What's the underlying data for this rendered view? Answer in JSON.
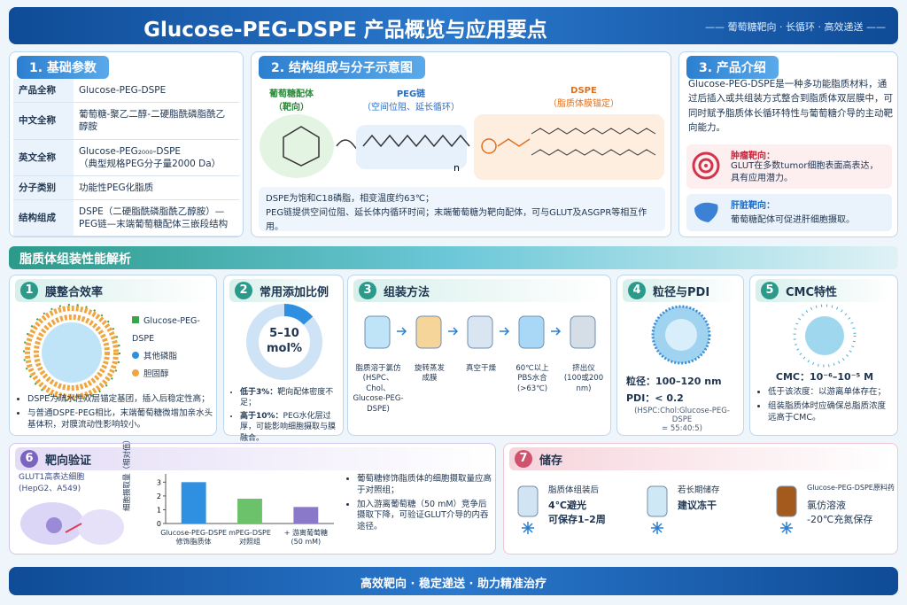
{
  "header": {
    "title": "Glucose-PEG-DSPE 产品概览与应用要点",
    "subtitle": "—— 葡萄糖靶向 · 长循环 · 高效递送 ——"
  },
  "basic": {
    "title": "1. 基础参数",
    "rows": [
      [
        "产品全称",
        "Glucose-PEG-DSPE"
      ],
      [
        "中文全称",
        "葡萄糖-聚乙二醇-二硬脂酰磷脂酰乙醇胺"
      ],
      [
        "英文全称",
        "Glucose-PEG₂₀₀₀-DSPE\n（典型规格PEG分子量2000 Da）"
      ],
      [
        "分子类别",
        "功能性PEG化脂质"
      ],
      [
        "结构组成",
        "DSPE（二硬脂酰磷脂酰乙醇胺）—\nPEG链—末端葡萄糖配体三嵌段结构"
      ]
    ]
  },
  "structure": {
    "title": "2. 结构组成与分子示意图",
    "glucose": {
      "name": "葡萄糖配体",
      "role": "（靶向）"
    },
    "peg": {
      "name": "PEG链",
      "role": "（空间位阻、延长循环）",
      "n": "n"
    },
    "dspe": {
      "name": "DSPE",
      "role": "（脂质体膜锚定）"
    },
    "notes": [
      "DSPE为饱和C18磷脂，相变温度约63℃；",
      "PEG链提供空间位阻、延长体内循环时间；末端葡萄糖为靶向配体，可与GLUT及ASGPR等相互作用。"
    ]
  },
  "intro": {
    "title": "3. 产品介绍",
    "text": "Glucose-PEG-DSPE是一种多功能脂质材料，通过后插入或共组装方式整合到脂质体双层膜中，可同时赋予脂质体长循环特性与葡萄糖介导的主动靶向能力。",
    "items": [
      {
        "title": "肿瘤靶向：",
        "text": "GLUT在多数tumor细胞表面高表达，具有应用潜力。"
      },
      {
        "title": "肝脏靶向：",
        "text": "葡萄糖配体可促进肝细胞摄取。"
      }
    ]
  },
  "assembly": {
    "title": "脂质体组装性能解析",
    "membrane": {
      "num": "1",
      "title": "膜整合效率",
      "legend": [
        "Glucose-PEG-DSPE",
        "其他磷脂",
        "胆固醇"
      ],
      "bullets": [
        "DSPE为疏水性双层锚定基团，插入后稳定性高；",
        "与普通DSPE-PEG相比，末端葡萄糖微增加亲水头基体积，对膜流动性影响较小。"
      ]
    },
    "ratio": {
      "num": "2",
      "title": "常用添加比例",
      "value": "5–10",
      "unit": "mol%",
      "bullets": [
        {
          "label": "低于3%：",
          "text": "靶向配体密度不足；"
        },
        {
          "label": "高于10%：",
          "text": "PEG水化层过厚，可能影响细胞摄取与膜融合。"
        }
      ]
    },
    "method": {
      "num": "3",
      "title": "组装方法",
      "steps": [
        "脂质溶于氯仿\n(HSPC、Chol、\nGlucose-PEG-DSPE)",
        "旋转蒸发\n成膜",
        "真空干燥",
        "60℃以上\nPBS水合\n(>63℃)",
        "挤出仪\n(100或200 nm)"
      ]
    },
    "size": {
      "num": "4",
      "title": "粒径与PDI",
      "size": "粒径：100–120 nm",
      "pdi": "PDI：< 0.2",
      "formula": "(HSPC:Chol:Glucose-PEG-DSPE\n= 55:40:5)"
    },
    "cmc": {
      "num": "5",
      "title": "CMC特性",
      "value": "CMC：10⁻⁶–10⁻⁵ M",
      "bullets": [
        "低于该浓度：以游离单体存在；",
        "组装脂质体时应确保总脂质浓度远高于CMC。"
      ]
    }
  },
  "targeting": {
    "num": "6",
    "title": "靶向验证",
    "cell": "GLUT1高表达细胞\n(HepG2、A549)",
    "chart": {
      "type": "bar",
      "ylabel": "细胞摄取量（相对值）",
      "categories": [
        "Glucose-PEG-DSPE\n修饰脂质体",
        "mPEG-DSPE\n对照组",
        "+ 游离葡萄糖\n(50 mM)"
      ],
      "values": [
        3.0,
        1.8,
        1.2
      ],
      "colors": [
        "#2f8fe0",
        "#6cc26a",
        "#8a78c8"
      ],
      "ylim": [
        0,
        3.6
      ],
      "yticks": [
        0,
        1,
        2,
        3
      ]
    },
    "bullets": [
      "葡萄糖修饰脂质体的细胞摄取量应高于对照组；",
      "加入游离葡萄糖（50 mM）竞争后摄取下降，可验证GLUT介导的内吞途径。"
    ]
  },
  "storage": {
    "num": "7",
    "title": "储存",
    "items": [
      {
        "label": "脂质体组装后",
        "text": "4℃避光\n可保存1–2周"
      },
      {
        "label": "若长期储存",
        "text": "建议冻干"
      },
      {
        "label": "Glucose-PEG-DSPE原料药",
        "text": "氯仿溶液\n-20℃充氮保存"
      }
    ]
  },
  "footer": {
    "text": "高效靶向 · 稳定递送 · 助力精准治疗"
  }
}
